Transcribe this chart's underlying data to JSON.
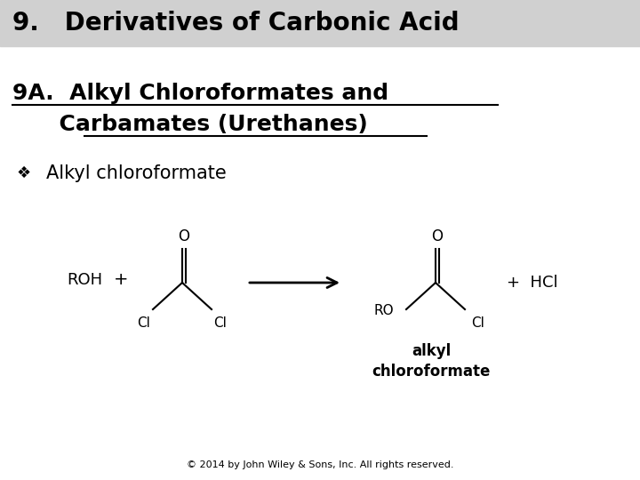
{
  "title": "9.   Derivatives of Carbonic Acid",
  "title_bg": "#d0d0d0",
  "title_fontsize": 20,
  "title_fontweight": "bold",
  "subtitle_line1": "9A.  Alkyl Chloroformates and",
  "subtitle_line2": "      Carbamates (Urethanes)",
  "subtitle_fontsize": 18,
  "subtitle_fontweight": "bold",
  "bullet_char": "❖",
  "bullet_text": "Alkyl chloroformate",
  "bullet_fontsize": 15,
  "footer": "© 2014 by John Wiley & Sons, Inc. All rights reserved.",
  "footer_fontsize": 8,
  "bg_color": "#ffffff",
  "sub_underline_color": "#000000",
  "text_color": "#000000"
}
